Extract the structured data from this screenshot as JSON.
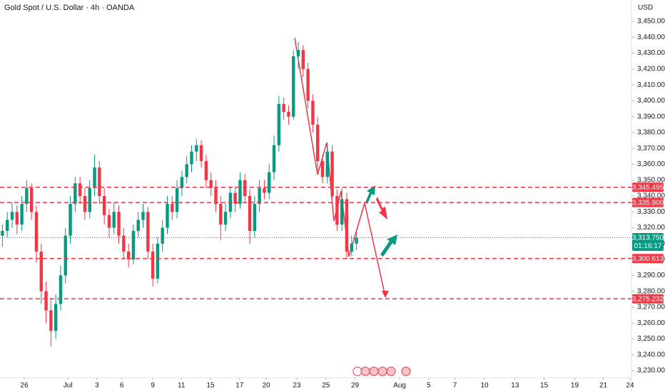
{
  "chart_data": {
    "type": "candlestick",
    "title": "Gold Spot / U.S. Dollar · 4h · OANDA",
    "y_axis_label": "USD",
    "up_color": "#089981",
    "down_color": "#f23645",
    "open": [
      3315,
      3318,
      3325,
      3330,
      3322,
      3335,
      3345,
      3330,
      3305,
      3280,
      3268,
      3255,
      3272,
      3290,
      3315,
      3335,
      3348,
      3340,
      3330,
      3345,
      3358,
      3340,
      3328,
      3320,
      3330,
      3315,
      3305,
      3300,
      3318,
      3325,
      3330,
      3305,
      3288,
      3310,
      3320,
      3335,
      3330,
      3345,
      3352,
      3360,
      3368,
      3372,
      3362,
      3350,
      3345,
      3335,
      3322,
      3330,
      3342,
      3335,
      3350,
      3340,
      3318,
      3335,
      3345,
      3342,
      3355,
      3372,
      3398,
      3393,
      3390,
      3428,
      3432,
      3420,
      3400,
      3385,
      3362,
      3352,
      3368,
      3340,
      3322,
      3338,
      3305,
      3310
    ],
    "high": [
      3322,
      3330,
      3336,
      3334,
      3340,
      3350,
      3348,
      3334,
      3310,
      3286,
      3275,
      3278,
      3296,
      3320,
      3340,
      3352,
      3352,
      3345,
      3350,
      3366,
      3362,
      3345,
      3332,
      3336,
      3334,
      3320,
      3310,
      3322,
      3330,
      3335,
      3333,
      3310,
      3314,
      3325,
      3340,
      3340,
      3350,
      3356,
      3365,
      3372,
      3376,
      3375,
      3366,
      3355,
      3350,
      3340,
      3335,
      3346,
      3346,
      3355,
      3354,
      3344,
      3340,
      3350,
      3350,
      3360,
      3378,
      3403,
      3402,
      3397,
      3432,
      3437,
      3435,
      3424,
      3404,
      3390,
      3366,
      3373,
      3372,
      3344,
      3345,
      3342,
      3315,
      3318
    ],
    "low": [
      3308,
      3314,
      3320,
      3316,
      3318,
      3330,
      3325,
      3298,
      3272,
      3260,
      3245,
      3250,
      3268,
      3285,
      3310,
      3330,
      3335,
      3325,
      3326,
      3340,
      3335,
      3322,
      3314,
      3316,
      3310,
      3300,
      3295,
      3297,
      3314,
      3320,
      3300,
      3283,
      3285,
      3305,
      3316,
      3325,
      3326,
      3340,
      3348,
      3355,
      3362,
      3358,
      3345,
      3340,
      3330,
      3312,
      3318,
      3326,
      3330,
      3332,
      3336,
      3310,
      3314,
      3330,
      3338,
      3338,
      3350,
      3368,
      3388,
      3385,
      3388,
      3420,
      3415,
      3395,
      3380,
      3356,
      3348,
      3348,
      3335,
      3318,
      3318,
      3300,
      3302,
      3306
    ],
    "close": [
      3318,
      3325,
      3330,
      3322,
      3335,
      3345,
      3330,
      3305,
      3280,
      3268,
      3255,
      3272,
      3290,
      3315,
      3335,
      3348,
      3340,
      3330,
      3345,
      3358,
      3340,
      3328,
      3320,
      3330,
      3315,
      3305,
      3300,
      3318,
      3325,
      3330,
      3305,
      3288,
      3310,
      3320,
      3335,
      3330,
      3345,
      3352,
      3360,
      3368,
      3372,
      3362,
      3350,
      3345,
      3335,
      3322,
      3330,
      3342,
      3335,
      3350,
      3340,
      3318,
      3335,
      3345,
      3342,
      3355,
      3372,
      3398,
      3393,
      3390,
      3428,
      3432,
      3420,
      3400,
      3385,
      3362,
      3352,
      3368,
      3340,
      3322,
      3338,
      3305,
      3310,
      3313.75
    ],
    "xlim": [
      0,
      130.2
    ],
    "xticks": [
      {
        "value": 5,
        "label": "26"
      },
      {
        "value": 14,
        "label": "Jul"
      },
      {
        "value": 20,
        "label": "3"
      },
      {
        "value": 25.1,
        "label": "6"
      },
      {
        "value": 31.5,
        "label": "9"
      },
      {
        "value": 37.4,
        "label": "11"
      },
      {
        "value": 43.4,
        "label": "15"
      },
      {
        "value": 49.4,
        "label": "17"
      },
      {
        "value": 54.9,
        "label": "20"
      },
      {
        "value": 61.2,
        "label": "23"
      },
      {
        "value": 67.2,
        "label": "25"
      },
      {
        "value": 73.2,
        "label": "29"
      },
      {
        "value": 82.4,
        "label": "Aug"
      },
      {
        "value": 88.4,
        "label": "5"
      },
      {
        "value": 93.8,
        "label": "7"
      },
      {
        "value": 99.9,
        "label": "10"
      },
      {
        "value": 106.2,
        "label": "13"
      },
      {
        "value": 112.2,
        "label": "15"
      },
      {
        "value": 118.5,
        "label": "19"
      },
      {
        "value": 124.4,
        "label": "21"
      },
      {
        "value": 129.9,
        "label": "24"
      }
    ],
    "ylim": [
      3225.5,
      3463.5
    ],
    "yticks": [
      {
        "value": 3230,
        "label": "3,230.000"
      },
      {
        "value": 3240,
        "label": "3,240.000"
      },
      {
        "value": 3250,
        "label": "3,250.000"
      },
      {
        "value": 3260,
        "label": "3,260.000"
      },
      {
        "value": 3270,
        "label": "3,270.000"
      },
      {
        "value": 3280,
        "label": "3,280.000"
      },
      {
        "value": 3290,
        "label": "3,290.000"
      },
      {
        "value": 3300,
        "label": "3,300.000"
      },
      {
        "value": 3310,
        "label": "3,310.000"
      },
      {
        "value": 3320,
        "label": "3,320.000"
      },
      {
        "value": 3330,
        "label": "3,330.000"
      },
      {
        "value": 3340,
        "label": "3,340.000"
      },
      {
        "value": 3350,
        "label": "3,350.000"
      },
      {
        "value": 3360,
        "label": "3,360.000"
      },
      {
        "value": 3370,
        "label": "3,370.000"
      },
      {
        "value": 3380,
        "label": "3,380.000"
      },
      {
        "value": 3390,
        "label": "3,390.000"
      },
      {
        "value": 3400,
        "label": "3,400.000"
      },
      {
        "value": 3410,
        "label": "3,410.000"
      },
      {
        "value": 3420,
        "label": "3,420.000"
      },
      {
        "value": 3430,
        "label": "3,430.000"
      },
      {
        "value": 3440,
        "label": "3,440.000"
      },
      {
        "value": 3450,
        "label": "3,450.000"
      }
    ],
    "levels": [
      {
        "value": 3345.495,
        "label": "3,345.495"
      },
      {
        "value": 3335.9,
        "label": "3,335.900"
      },
      {
        "value": 3300.613,
        "label": "3,300.613"
      },
      {
        "value": 3275.232,
        "label": "3,275.232"
      }
    ],
    "level_color": "#f23645",
    "last_price": {
      "value": 3313.75,
      "label": "3,313.750",
      "countdown": "01:16:17"
    },
    "last_price_color": "#089981"
  }
}
